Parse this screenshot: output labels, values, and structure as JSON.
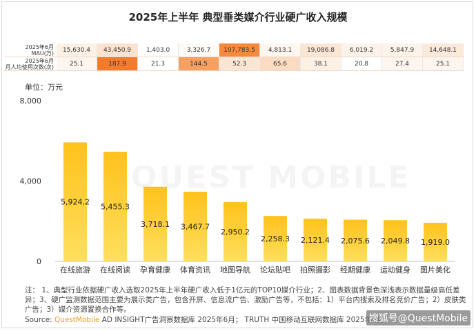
{
  "title": "2025年上半年 典型垂类媒介行业硬广收入规模",
  "metrics_table": {
    "rows": [
      {
        "label_line1": "2025年6月",
        "label_line2": "MAU(万)",
        "values": [
          "15,630.4",
          "43,450.9",
          "1,403.0",
          "3,326.7",
          "107,783.5",
          "4,813.1",
          "19,086.8",
          "6,019.2",
          "5,847.9",
          "14,648.1"
        ],
        "bg": [
          "#fdf1e6",
          "#fbe3cf",
          "#ffffff",
          "#fefaf6",
          "#f58a3c",
          "#fef6ef",
          "#fbe6d4",
          "#fdf3ea",
          "#fdf3ea",
          "#fbe9da"
        ]
      },
      {
        "label_line1": "2025年6月",
        "label_line2": "月人均使用次数(次)",
        "values": [
          "25.1",
          "187.9",
          "21.3",
          "144.5",
          "52.3",
          "65.6",
          "38.1",
          "20.8",
          "27.4",
          "25.1"
        ],
        "bg": [
          "#fdf5ee",
          "#f37b2e",
          "#ffffff",
          "#f6a061",
          "#fce6d3",
          "#fbdcc2",
          "#fdf0e4",
          "#ffffff",
          "#fdf5ee",
          "#fdf5ee"
        ]
      }
    ]
  },
  "unit_label": "单位：万元",
  "watermark": "QUEST MOBILE",
  "chart_data": {
    "type": "bar",
    "categories": [
      "在线旅游",
      "在线阅读",
      "孕育健康",
      "体育资讯",
      "地图导航",
      "论坛贴吧",
      "拍照摄影",
      "经期健康",
      "运动健身",
      "图片美化"
    ],
    "values": [
      5924.2,
      5455.3,
      3718.1,
      3467.7,
      2950.2,
      2258.3,
      2121.4,
      2075.6,
      2049.8,
      1919.0
    ],
    "value_labels": [
      "5,924.2",
      "5,455.3",
      "3,718.1",
      "3,467.7",
      "2,950.2",
      "2,258.3",
      "2,121.4",
      "2,075.6",
      "2,049.8",
      "1,919.0"
    ],
    "yticks": [
      "0",
      "4,000",
      "8,000"
    ],
    "ytick_values": [
      0,
      4000,
      8000
    ],
    "ylim": [
      0,
      8000
    ],
    "bar_color_top": "#ffc21a",
    "bar_color_bottom": "#ffdf5e",
    "grid": false
  },
  "note": "注： 1、典型行业依据硬广收入选取2025年上半年硬广收入低于1亿元的TOP10媒介行业；2、图表数据背景色深浅表示数据量级高低差异；3、硬广监测数据范围主要为展示类广告，包含开屏、信息流广告、激励广告等，不包括：1）平台内搜索及排名竞价广告；2）皮肤类广告；3）媒介资源置换合作等。",
  "source": {
    "prefix": "Source: ",
    "brand": "QuestMobile",
    "rest": " AD INSIGHT广告洞察数据库 2025年6月；  TRUTH 中国移动互联网数据库 2025年6月"
  },
  "credit": "搜狐号@QuestMobile"
}
